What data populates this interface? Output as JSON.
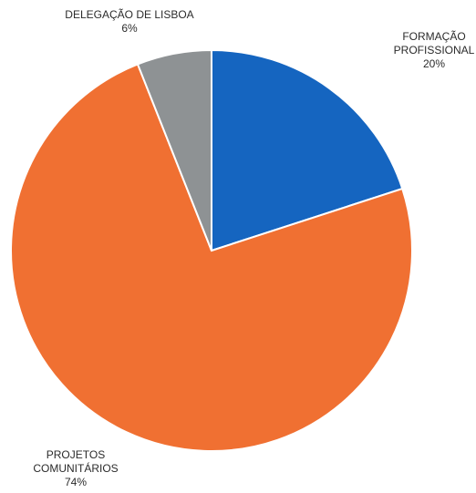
{
  "chart_data": {
    "type": "pie",
    "title": "",
    "slices": [
      {
        "label_lines": [
          "FORMAÇÃO",
          "PROFISSIONAL",
          "20%"
        ],
        "name": "FORMAÇÃO PROFISSIONAL",
        "value": 20,
        "color": "#1565c0"
      },
      {
        "label_lines": [
          "PROJETOS",
          "COMUNITÁRIOS",
          "74%"
        ],
        "name": "PROJETOS COMUNITÁRIOS",
        "value": 74,
        "color": "#f07032"
      },
      {
        "label_lines": [
          "DELEGAÇÃO DE LISBOA",
          "6%"
        ],
        "name": "DELEGAÇÃO DE LISBOA",
        "value": 6,
        "color": "#8e9294"
      }
    ],
    "start_angle_deg": 0,
    "direction": "clockwise",
    "legend": "none"
  }
}
